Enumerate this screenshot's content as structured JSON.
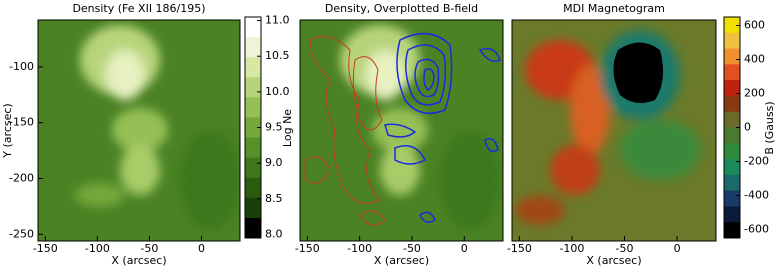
{
  "chart_data": [
    {
      "type": "image",
      "title": "Density (Fe XII 186/195)",
      "xlabel": "X (arcsec)",
      "ylabel": "Y (arcsec)",
      "xlim": [
        -157,
        37
      ],
      "ylim": [
        -256,
        -58
      ],
      "xticks": [
        -150,
        -100,
        -50,
        0
      ],
      "yticks": [
        -100,
        -150,
        -200,
        -250
      ],
      "colorbar": {
        "label": "Log Ne",
        "lim": [
          7.95,
          11.05
        ],
        "ticks": [
          {
            "value": 11,
            "label": "11.0"
          },
          10.5,
          {
            "value": 10,
            "label": "10.0"
          },
          9.5,
          {
            "value": 9,
            "label": "9.0"
          },
          8.5,
          {
            "value": 8,
            "label": "8.0"
          }
        ],
        "colors": [
          "#ffffff",
          "#eef4d8",
          "#d6e8a4",
          "#b8d47a",
          "#96c056",
          "#74a83a",
          "#569028",
          "#3e781a",
          "#2a5c10",
          "#1a400a",
          "#000000"
        ]
      }
    },
    {
      "type": "image",
      "title": "Density, Overplotted B-field",
      "xlabel": "X (arcsec)",
      "xlim": [
        -157,
        37
      ],
      "ylim": [
        -256,
        -58
      ],
      "xticks": [
        -150,
        -100,
        -50,
        0
      ]
    },
    {
      "type": "image",
      "title": "MDI Magnetogram",
      "xlabel": "X (arcsec)",
      "xlim": [
        -157,
        37
      ],
      "ylim": [
        -256,
        -58
      ],
      "xticks": [
        -150,
        -100,
        -50,
        0
      ],
      "colorbar": {
        "label": "B (Gauss)",
        "lim": [
          -650,
          650
        ],
        "ticks": [
          600,
          400,
          200,
          0,
          -200,
          -400,
          -600
        ],
        "colors": [
          "#f0e000",
          "#f0c040",
          "#f09030",
          "#e05020",
          "#c02010",
          "#8a3a10",
          "#6a6a2a",
          "#4a7a30",
          "#2e8a3a",
          "#1a8a5a",
          "#1a6a6a",
          "#1a3a6a",
          "#0a1a3a",
          "#000000"
        ]
      }
    }
  ]
}
